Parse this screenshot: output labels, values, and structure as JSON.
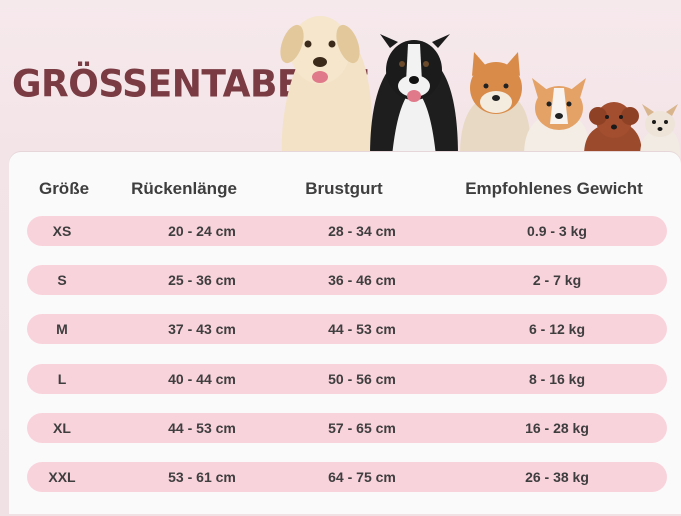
{
  "title": "GRÖSSENTABELLE",
  "headers": [
    "Größe",
    "Rückenlänge",
    "Brustgurt",
    "Empfohlenes Gewicht"
  ],
  "rows": [
    [
      "XS",
      "20 - 24 cm",
      "28 - 34 cm",
      "0.9 - 3 kg"
    ],
    [
      "S",
      "25 - 36 cm",
      "36 - 46 cm",
      "2 - 7 kg"
    ],
    [
      "M",
      "37 - 43 cm",
      "44 - 53 cm",
      "6 - 12 kg"
    ],
    [
      "L",
      "40 - 44 cm",
      "50 - 56 cm",
      "8 - 16 kg"
    ],
    [
      "XL",
      "44 - 53 cm",
      "57 - 65 cm",
      "16 - 28 kg"
    ],
    [
      "XXL",
      "53 - 61 cm",
      "64 - 75 cm",
      "26 - 38 kg"
    ]
  ],
  "colors": {
    "title": "#7a3b43",
    "row_bg": "#f9d3dc",
    "text": "#3e3e3e"
  },
  "images": [
    "labrador",
    "border-collie",
    "shiba-inu",
    "corgi",
    "poodle",
    "chihuahua"
  ]
}
